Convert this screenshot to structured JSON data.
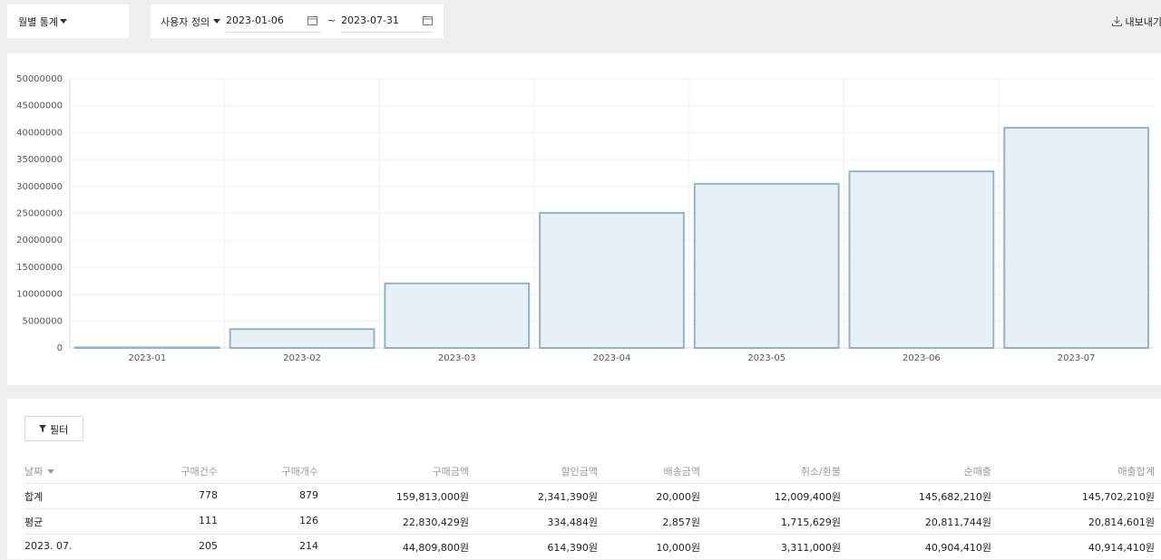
{
  "toolbar": {
    "period_select": "월별 통계",
    "range_type": "사용자 정의",
    "start_date": "2023-01-06",
    "separator": "~",
    "end_date": "2023-07-31",
    "export": "내보내기"
  },
  "chart": {
    "type": "bar",
    "categories": [
      "2023-01",
      "2023-02",
      "2023-03",
      "2023-04",
      "2023-05",
      "2023-06",
      "2023-07"
    ],
    "values": [
      100000,
      3500000,
      12000000,
      25100000,
      30500000,
      32800000,
      40900000
    ],
    "ylim": [
      0,
      50000000
    ],
    "yticks": [
      0,
      5000000,
      10000000,
      15000000,
      20000000,
      25000000,
      30000000,
      35000000,
      40000000,
      45000000,
      50000000
    ],
    "grid": true,
    "color": "#e8f0f5",
    "edge_color": "#8fb4cc"
  },
  "filter_button": "필터",
  "table": {
    "headers": [
      "날짜",
      "구매건수",
      "구매개수",
      "구매금액",
      "할인금액",
      "배송금액",
      "취소/환불",
      "순매출",
      "매출합계"
    ],
    "rows": [
      [
        "합계",
        "778",
        "879",
        "159,813,000원",
        "2,341,390원",
        "20,000원",
        "12,009,400원",
        "145,682,210원",
        "145,702,210원"
      ],
      [
        "평균",
        "111",
        "126",
        "22,830,429원",
        "334,484원",
        "2,857원",
        "1,715,629원",
        "20,811,744원",
        "20,814,601원"
      ],
      [
        "2023. 07.",
        "205",
        "214",
        "44,809,800원",
        "614,390원",
        "10,000원",
        "3,311,000원",
        "40,904,410원",
        "40,914,410원"
      ]
    ]
  }
}
